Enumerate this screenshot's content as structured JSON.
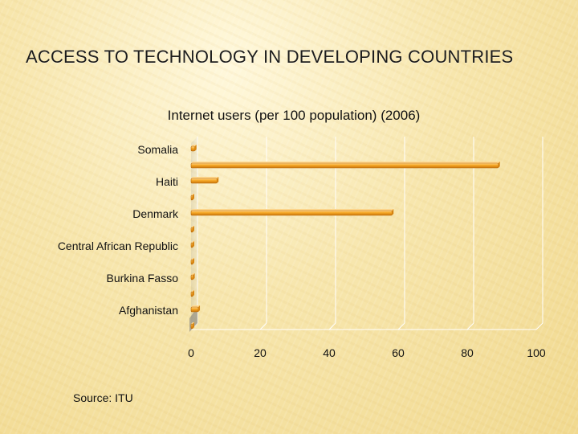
{
  "slide": {
    "title": "ACCESS TO TECHNOLOGY IN DEVELOPING COUNTRIES",
    "source": "Source: ITU"
  },
  "colors": {
    "bar": "#f5a623",
    "bar_dark": "#c9740c",
    "grid": "#ffffff"
  },
  "chart_data": {
    "type": "bar",
    "orientation": "horizontal",
    "title": "Internet users (per 100 population) (2006)",
    "categories": [
      "Somalia",
      "Haiti",
      "Denmark",
      "Central African Republic",
      "Burkina Fasso",
      "Afghanistan"
    ],
    "series": [
      {
        "values": [
          1.1,
          7.5,
          58.2,
          0.3,
          0.6,
          2.1
        ]
      },
      {
        "values": [
          89.0,
          0.2,
          0.0,
          0.3,
          0.3,
          0.1
        ]
      }
    ],
    "xlim": [
      0,
      100
    ],
    "xticks": [
      0,
      20,
      40,
      60,
      80,
      100
    ],
    "grid": true,
    "legend": "none"
  }
}
